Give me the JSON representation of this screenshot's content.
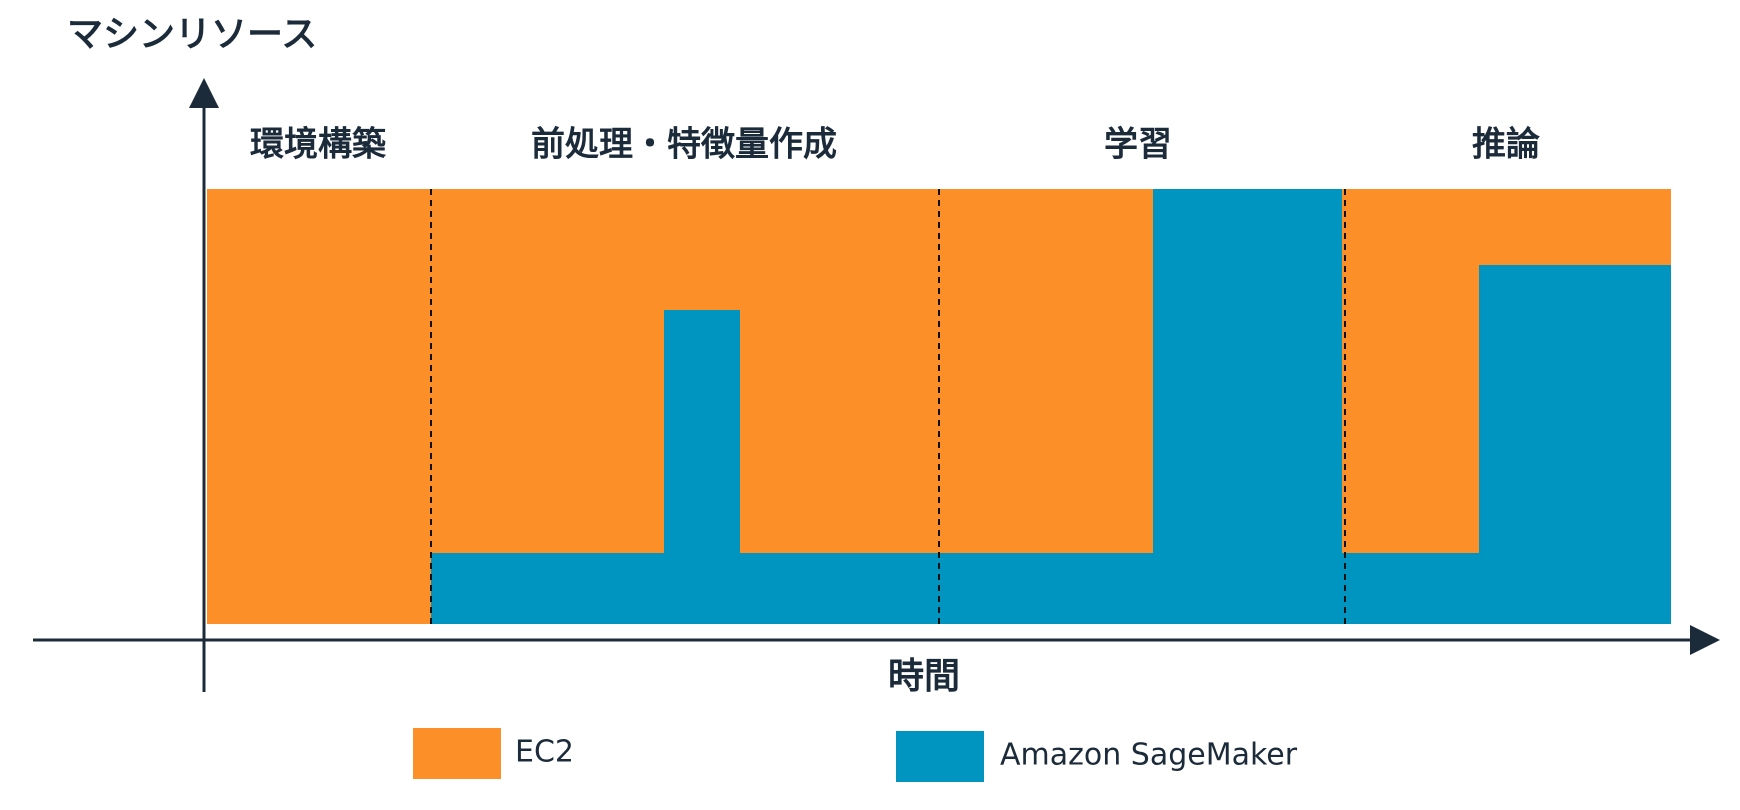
{
  "y_axis_label": "マシンリソース",
  "x_axis_label": "時間",
  "phases": [
    "環境構築",
    "前処理・特徴量作成",
    "学習",
    "推論"
  ],
  "legend": [
    {
      "name": "EC2",
      "color": "#fc8f28"
    },
    {
      "name": "Amazon SageMaker",
      "color": "#0095c1"
    }
  ]
}
